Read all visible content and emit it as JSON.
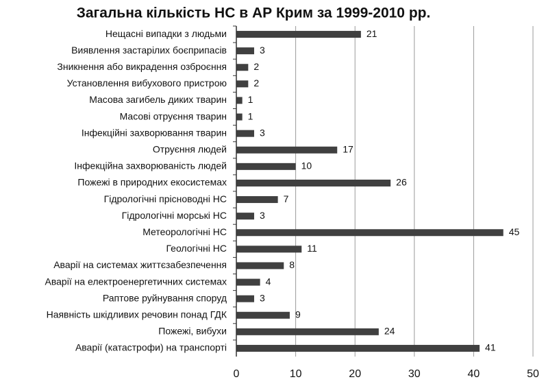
{
  "chart_data": {
    "type": "bar",
    "orientation": "horizontal",
    "title": "Загальна кількість НС в АР Крим за 1999-2010 рр.",
    "categories": [
      "Нещасні випадки з людьми",
      "Виявлення застарілих боєприпасів",
      "Зникнення або викрадення озброєння",
      "Установлення вибухового пристрою",
      "Масова загибель диких тварин",
      "Масові отруєння тварин",
      "Інфекційні захворювання тварин",
      "Отруєння людей",
      "Інфекційна захворюваність людей",
      "Пожежі в природних екосистемах",
      "Гідрологічні прісноводні НС",
      "Гідрологічні морські НС",
      "Метеорологічні НС",
      "Геологічні НС",
      "Аварії на системах життєзабезпечення",
      "Аварії на електроенергетичних системах",
      "Раптове руйнування споруд",
      "Наявність шкідливих речовин понад ГДК",
      "Пожежі, вибухи",
      "Аварії (катастрофи) на транспорті"
    ],
    "values": [
      21,
      3,
      2,
      2,
      1,
      1,
      3,
      17,
      10,
      26,
      7,
      3,
      45,
      11,
      8,
      4,
      3,
      9,
      24,
      41
    ],
    "color": "#404040",
    "xlim": [
      0,
      50
    ],
    "xticks": [
      0,
      10,
      20,
      30,
      40,
      50
    ],
    "grid": true
  }
}
